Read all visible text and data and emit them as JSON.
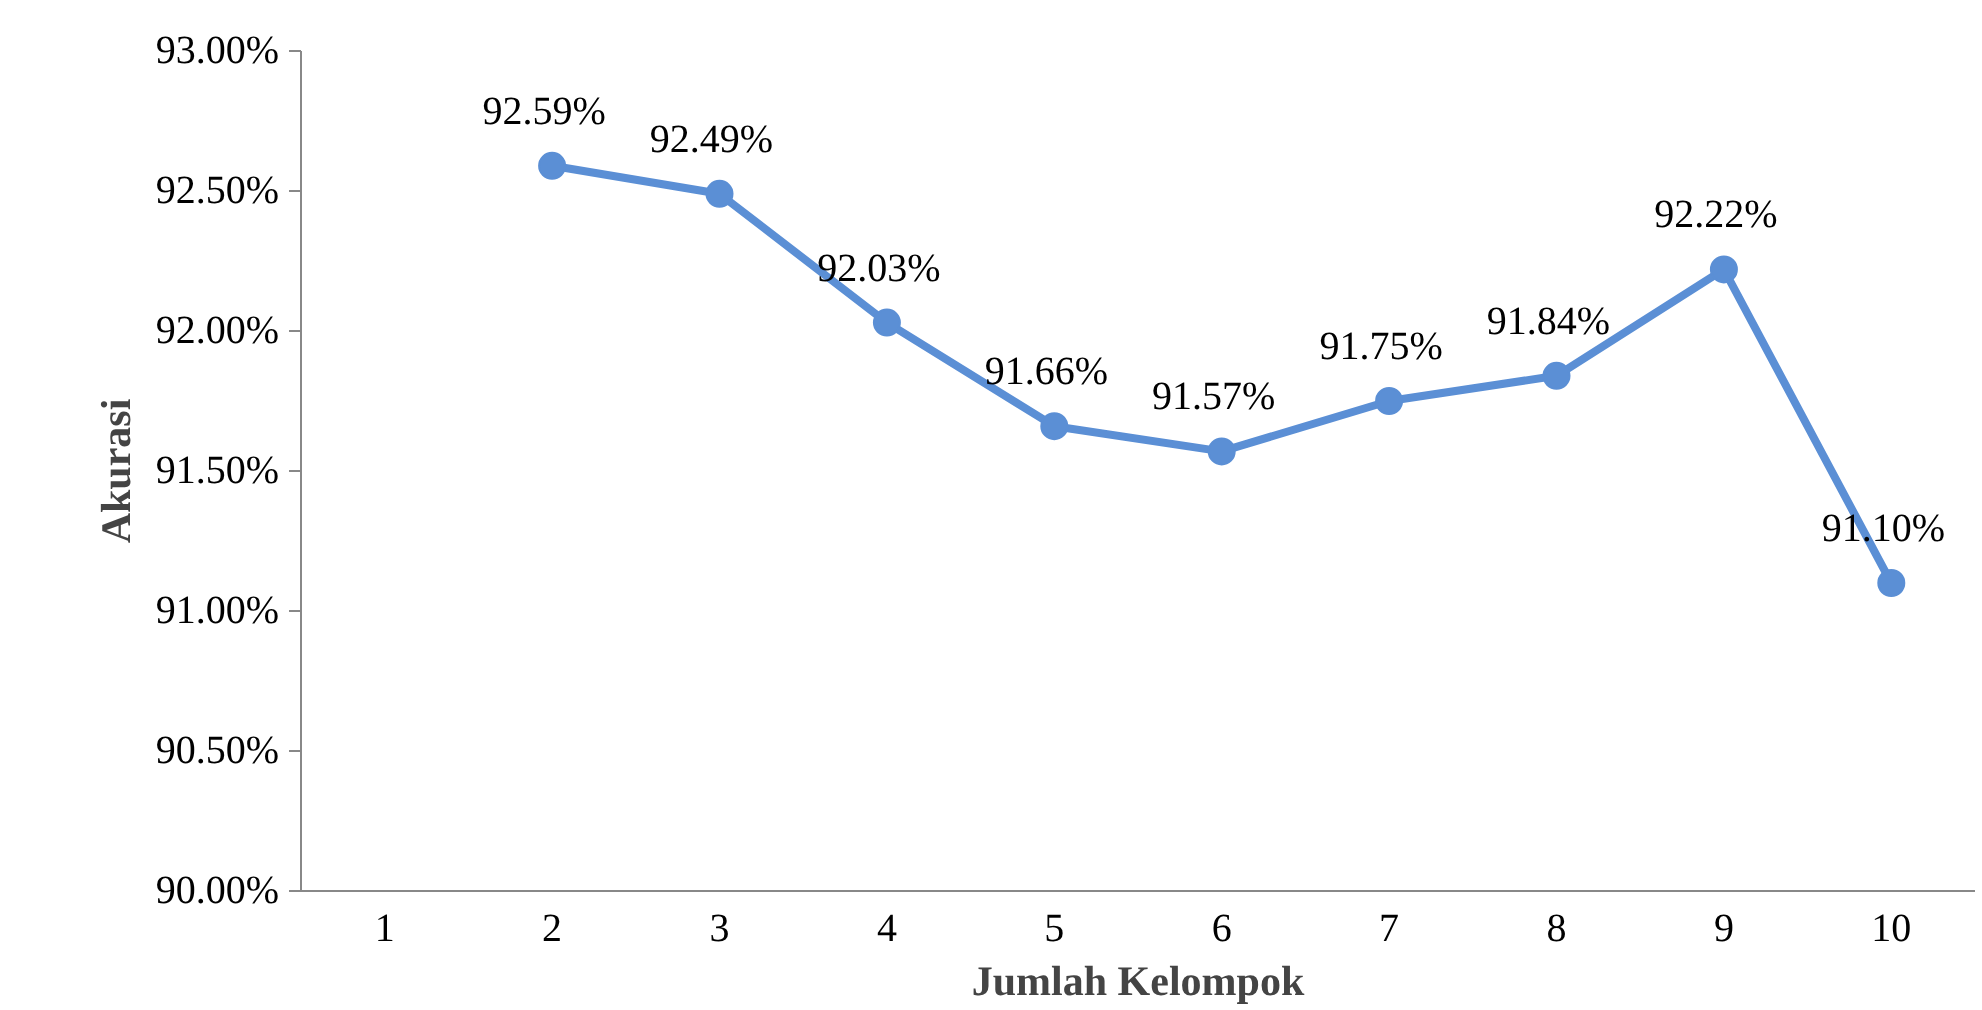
{
  "chart_data": {
    "type": "line",
    "xlabel": "Jumlah Kelompok",
    "ylabel": "Akurasi",
    "categories": [
      "1",
      "2",
      "3",
      "4",
      "5",
      "6",
      "7",
      "8",
      "9",
      "10"
    ],
    "series": [
      {
        "color": "#5b8fd5",
        "values": [
          null,
          92.59,
          92.49,
          92.03,
          91.66,
          91.57,
          91.75,
          91.84,
          92.22,
          91.1
        ],
        "value_labels": [
          null,
          "92.59%",
          "92.49%",
          "92.03%",
          "91.66%",
          "91.57%",
          "91.75%",
          "91.84%",
          "92.22%",
          "91.10%"
        ]
      }
    ],
    "ylim": [
      90,
      93
    ],
    "yticks": [
      {
        "value": 90,
        "label": "90.00%"
      },
      {
        "value": 90.5,
        "label": "90.50%"
      },
      {
        "value": 91,
        "label": "91.00%"
      },
      {
        "value": 91.5,
        "label": "91.50%"
      },
      {
        "value": 92,
        "label": "92.00%"
      },
      {
        "value": 92.5,
        "label": "92.50%"
      },
      {
        "value": 93,
        "label": "93.00%"
      }
    ],
    "marker": "circle",
    "line_style": "solid",
    "grid": false
  }
}
